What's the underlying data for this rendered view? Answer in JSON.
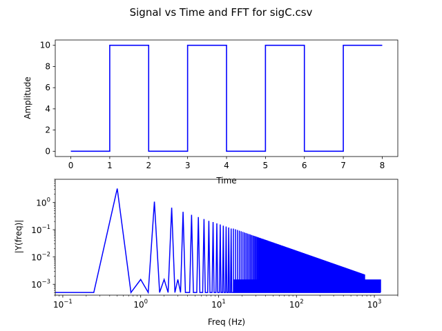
{
  "figure": {
    "suptitle": "Signal vs Time and FFT for sigC.csv",
    "line_color": "#0000ff"
  },
  "chart_data": [
    {
      "type": "line",
      "title": "",
      "xlabel": "Time",
      "ylabel": "Amplitude",
      "xlim": [
        -0.4,
        8.4
      ],
      "ylim": [
        -0.5,
        10.5
      ],
      "xticks": [
        0,
        1,
        2,
        3,
        4,
        5,
        6,
        7,
        8
      ],
      "yticks": [
        0,
        2,
        4,
        6,
        8,
        10
      ],
      "xtick_labels": [
        "0",
        "1",
        "2",
        "3",
        "4",
        "5",
        "6",
        "7",
        "8"
      ],
      "ytick_labels": [
        "0",
        "2",
        "4",
        "6",
        "8",
        "10"
      ],
      "grid": false,
      "series": [
        {
          "color": "#0000ff",
          "x": [
            0,
            1,
            1,
            2,
            2,
            3,
            3,
            4,
            4,
            5,
            5,
            6,
            6,
            7,
            7,
            8
          ],
          "y": [
            0,
            0,
            10,
            10,
            0,
            0,
            10,
            10,
            0,
            0,
            10,
            10,
            0,
            0,
            10,
            10
          ]
        }
      ]
    },
    {
      "type": "line",
      "title": "",
      "xlabel": "Freq (Hz)",
      "ylabel": "|Y(freq)|",
      "xscale": "log",
      "yscale": "log",
      "xlim": [
        0.08,
        2000
      ],
      "ylim": [
        0.0004,
        7
      ],
      "xticks": [
        0.1,
        1,
        10,
        100,
        1000
      ],
      "yticks": [
        0.001,
        0.01,
        0.1,
        1
      ],
      "xtick_labels": [
        {
          "base": "10",
          "exp": "−1"
        },
        {
          "base": "10",
          "exp": "0"
        },
        {
          "base": "10",
          "exp": "1"
        },
        {
          "base": "10",
          "exp": "2"
        },
        {
          "base": "10",
          "exp": "3"
        }
      ],
      "ytick_labels": [
        {
          "base": "10",
          "exp": "−3"
        },
        {
          "base": "10",
          "exp": "−2"
        },
        {
          "base": "10",
          "exp": "−1"
        },
        {
          "base": "10",
          "exp": "0"
        }
      ],
      "grid": false,
      "series": [
        {
          "color": "#0000ff",
          "peaks": [
            {
              "f": 0.5,
              "amp": 3.2
            },
            {
              "f": 1.0,
              "amp": 0.0015
            },
            {
              "f": 1.5,
              "amp": 1.06
            },
            {
              "f": 2.0,
              "amp": 0.0015
            },
            {
              "f": 2.5,
              "amp": 0.64
            },
            {
              "f": 3.0,
              "amp": 0.0015
            },
            {
              "f": 3.5,
              "amp": 0.45
            },
            {
              "f": 4.5,
              "amp": 0.35
            },
            {
              "f": 5.5,
              "amp": 0.29
            },
            {
              "f": 6.5,
              "amp": 0.245
            },
            {
              "f": 7.5,
              "amp": 0.21
            },
            {
              "f": 8.5,
              "amp": 0.19
            },
            {
              "f": 9.5,
              "amp": 0.17
            },
            {
              "f": 10.5,
              "amp": 0.155
            },
            {
              "f": 11.5,
              "amp": 0.14
            },
            {
              "f": 12.5,
              "amp": 0.13
            },
            {
              "f": 13.5,
              "amp": 0.12
            },
            {
              "f": 14.5,
              "amp": 0.11
            },
            {
              "f": 100,
              "amp": 0.014
            },
            {
              "f": 1000,
              "amp": 0.0015
            }
          ],
          "floor": 0.0005,
          "harmonic_spacing_hz": 1.0,
          "x_max": 1200,
          "envelope_flat_from_hz": 750,
          "dense_from_hz": 15
        }
      ]
    }
  ]
}
